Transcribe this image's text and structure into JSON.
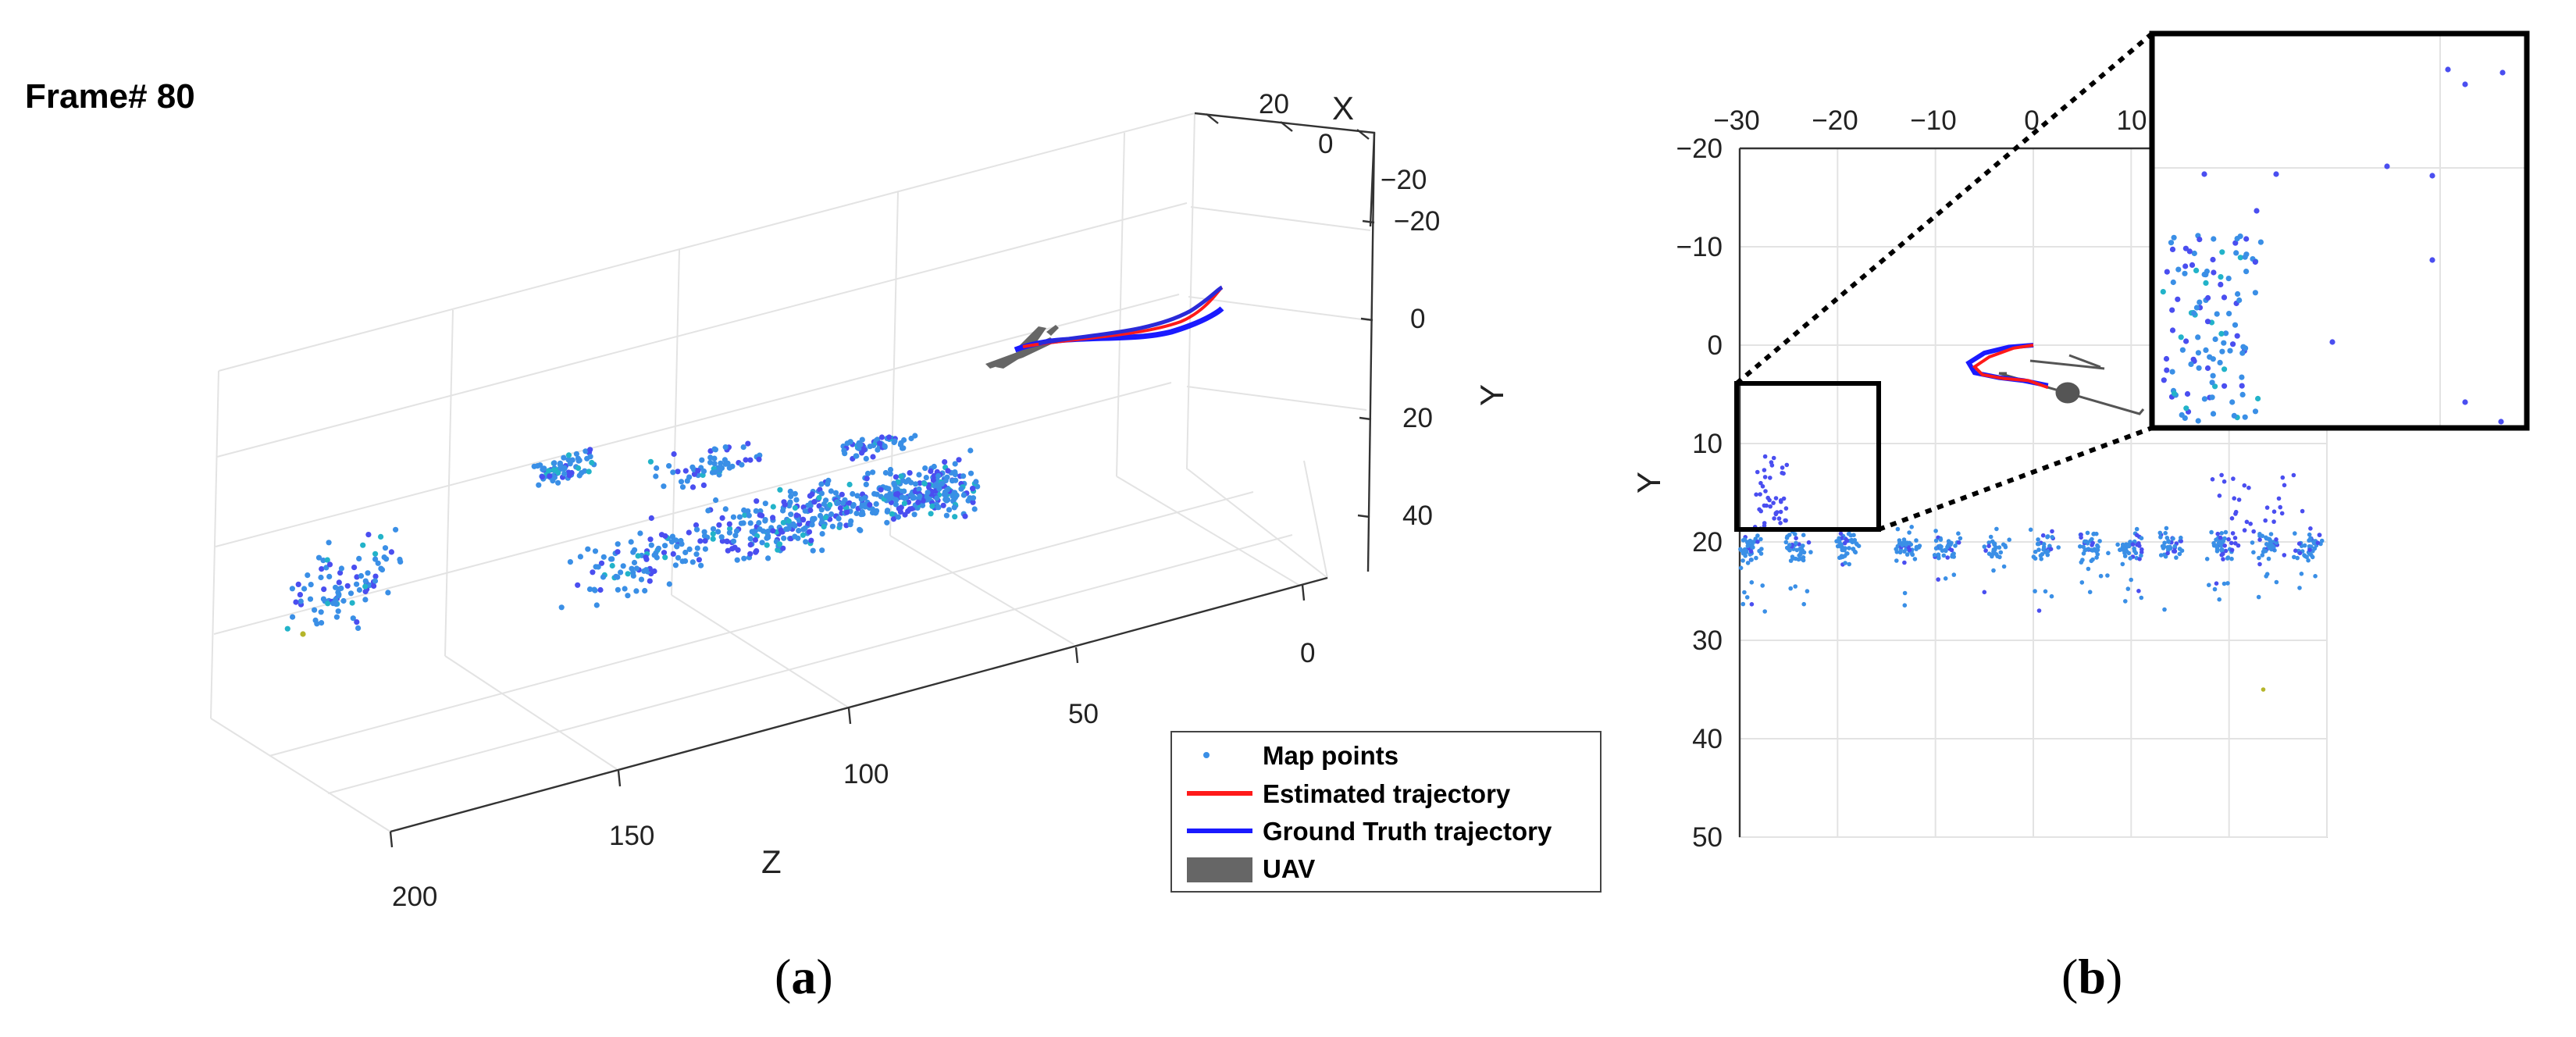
{
  "frame_label": "Frame# 80",
  "captions": {
    "a_open": "(",
    "a_letter": "a",
    "a_close": ")",
    "b_open": "(",
    "b_letter": "b",
    "b_close": ")"
  },
  "colors": {
    "map_point": "#3a8fe6",
    "map_point_dark": "#4a4ef0",
    "map_point_teal": "#22b3c9",
    "estimated": "#ff1a1a",
    "ground_truth": "#1a1aff",
    "uav": "#666666"
  },
  "legend": {
    "map_points": "Map points",
    "estimated": "Estimated trajectory",
    "ground_truth": "Ground Truth trajectory",
    "uav": "UAV"
  },
  "chart_data": [
    {
      "id": "a",
      "type": "scatter",
      "projection": "3d",
      "title": "Frame# 80",
      "xlabel": "X",
      "ylabel": "Y",
      "zlabel": "Z",
      "x_ticks": [
        "20",
        "0",
        "−20"
      ],
      "y_ticks": [
        "−20",
        "0",
        "20",
        "40"
      ],
      "z_ticks": [
        "0",
        "50",
        "100",
        "150",
        "200"
      ],
      "series": [
        {
          "name": "Map points",
          "kind": "points",
          "count_shown": 900
        },
        {
          "name": "Estimated trajectory",
          "kind": "line"
        },
        {
          "name": "Ground Truth trajectory",
          "kind": "line"
        },
        {
          "name": "UAV",
          "kind": "model"
        }
      ]
    },
    {
      "id": "b",
      "type": "scatter",
      "xlabel": "X",
      "ylabel": "Y",
      "xlim": [
        -30,
        30
      ],
      "ylim": [
        -20,
        50
      ],
      "y_reversed": true,
      "x_ticks": [
        "−30",
        "−20",
        "−10",
        "0",
        "10"
      ],
      "y_ticks": [
        "−20",
        "−10",
        "0",
        "10",
        "20",
        "30",
        "40",
        "50"
      ],
      "estimated_trajectory": [
        [
          0,
          0
        ],
        [
          -2,
          0.3
        ],
        [
          -4.5,
          1.2
        ],
        [
          -6,
          2.2
        ],
        [
          -5.2,
          3
        ],
        [
          -3,
          3.4
        ],
        [
          -0.5,
          3.6
        ],
        [
          1.5,
          4.3
        ]
      ],
      "ground_truth_trajectory": [
        [
          0,
          0
        ],
        [
          -2.5,
          0.2
        ],
        [
          -5,
          0.8
        ],
        [
          -6.6,
          1.8
        ],
        [
          -6,
          2.8
        ],
        [
          -3.5,
          3.3
        ],
        [
          -1,
          3.6
        ],
        [
          1.5,
          4.1
        ]
      ],
      "inset": {
        "x_range": [
          -30,
          -15
        ],
        "y_range": [
          4,
          19
        ],
        "magnified": true
      }
    }
  ]
}
